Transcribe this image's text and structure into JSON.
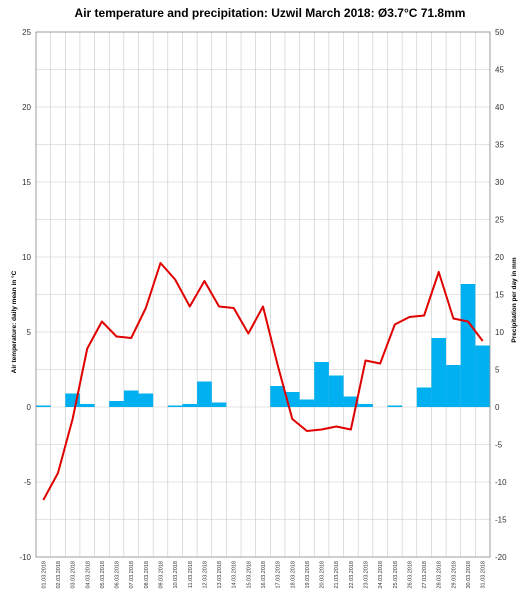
{
  "chart_data": {
    "type": "bar+line",
    "title": "Air temperature and precipitation: Uzwil March 2018: Ø3.7°C 71.8mm",
    "ylabel_left": "Air temperature: daily mean in °C",
    "ylabel_right": "Precipitation per day in mm",
    "categories": [
      "01.03.2018",
      "02.03.2018",
      "03.03.2018",
      "04.03.2018",
      "05.03.2018",
      "06.03.2018",
      "07.03.2018",
      "08.03.2018",
      "09.03.2018",
      "10.03.2018",
      "11.03.2018",
      "12.03.2018",
      "13.03.2018",
      "14.03.2018",
      "15.03.2018",
      "16.03.2018",
      "17.03.2018",
      "18.03.2018",
      "19.03.2018",
      "20.03.2018",
      "21.03.2018",
      "22.03.2018",
      "23.03.2018",
      "24.03.2018",
      "25.03.2018",
      "26.03.2018",
      "27.03.2018",
      "28.03.2018",
      "29.03.2018",
      "30.03.2018",
      "31.03.2018"
    ],
    "left_axis": {
      "min": -10,
      "max": 25,
      "ticks": [
        -10,
        -5,
        0,
        5,
        10,
        15,
        20,
        25
      ]
    },
    "right_axis": {
      "min": -20,
      "max": 50,
      "ticks": [
        -20,
        -15,
        -10,
        -5,
        0,
        5,
        10,
        15,
        20,
        25,
        30,
        35,
        40,
        45,
        50
      ]
    },
    "grid": true,
    "series": [
      {
        "kind": "bar",
        "axis": "right",
        "color": "#00b0f0",
        "values": [
          0.2,
          0,
          1.8,
          0.4,
          0,
          0.8,
          2.2,
          1.8,
          0,
          0.2,
          0.4,
          3.4,
          0.6,
          0,
          0,
          0,
          2.8,
          2.0,
          1.0,
          6.0,
          4.2,
          1.4,
          0.4,
          0,
          0.2,
          0,
          2.6,
          9.2,
          5.6,
          16.4,
          8.2
        ]
      },
      {
        "kind": "line",
        "axis": "left",
        "color": "#e00000",
        "values": [
          -6.2,
          -4.4,
          -0.8,
          3.9,
          5.7,
          4.7,
          4.6,
          6.6,
          9.6,
          8.5,
          6.7,
          8.4,
          6.7,
          6.6,
          4.9,
          6.7,
          2.8,
          -0.8,
          -1.6,
          -1.5,
          -1.3,
          -1.5,
          3.1,
          2.9,
          5.5,
          6.0,
          6.1,
          9.0,
          5.9,
          5.7,
          4.4
        ]
      }
    ]
  }
}
